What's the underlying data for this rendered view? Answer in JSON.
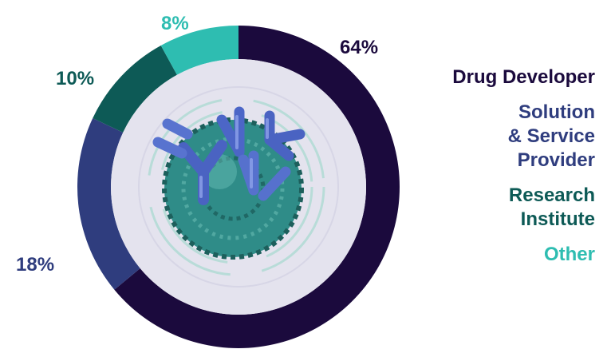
{
  "chart_data": {
    "type": "pie",
    "categories": [
      "Drug Developer",
      "Solution\n& Service\nProvider",
      "Research\nInstitute",
      "Other"
    ],
    "values": [
      64,
      18,
      10,
      8
    ],
    "labels": [
      "64%",
      "18%",
      "10%",
      "8%"
    ],
    "legend_placement": "right"
  },
  "colors": {
    "drug_developer": "#1b0a3d",
    "solution_service_provider": "#2f3d7e",
    "research_institute": "#0d5a56",
    "other": "#2ebdb1",
    "inner_disc": "#e4e3ee",
    "center_image": "antibodies-on-cell-illustration"
  }
}
